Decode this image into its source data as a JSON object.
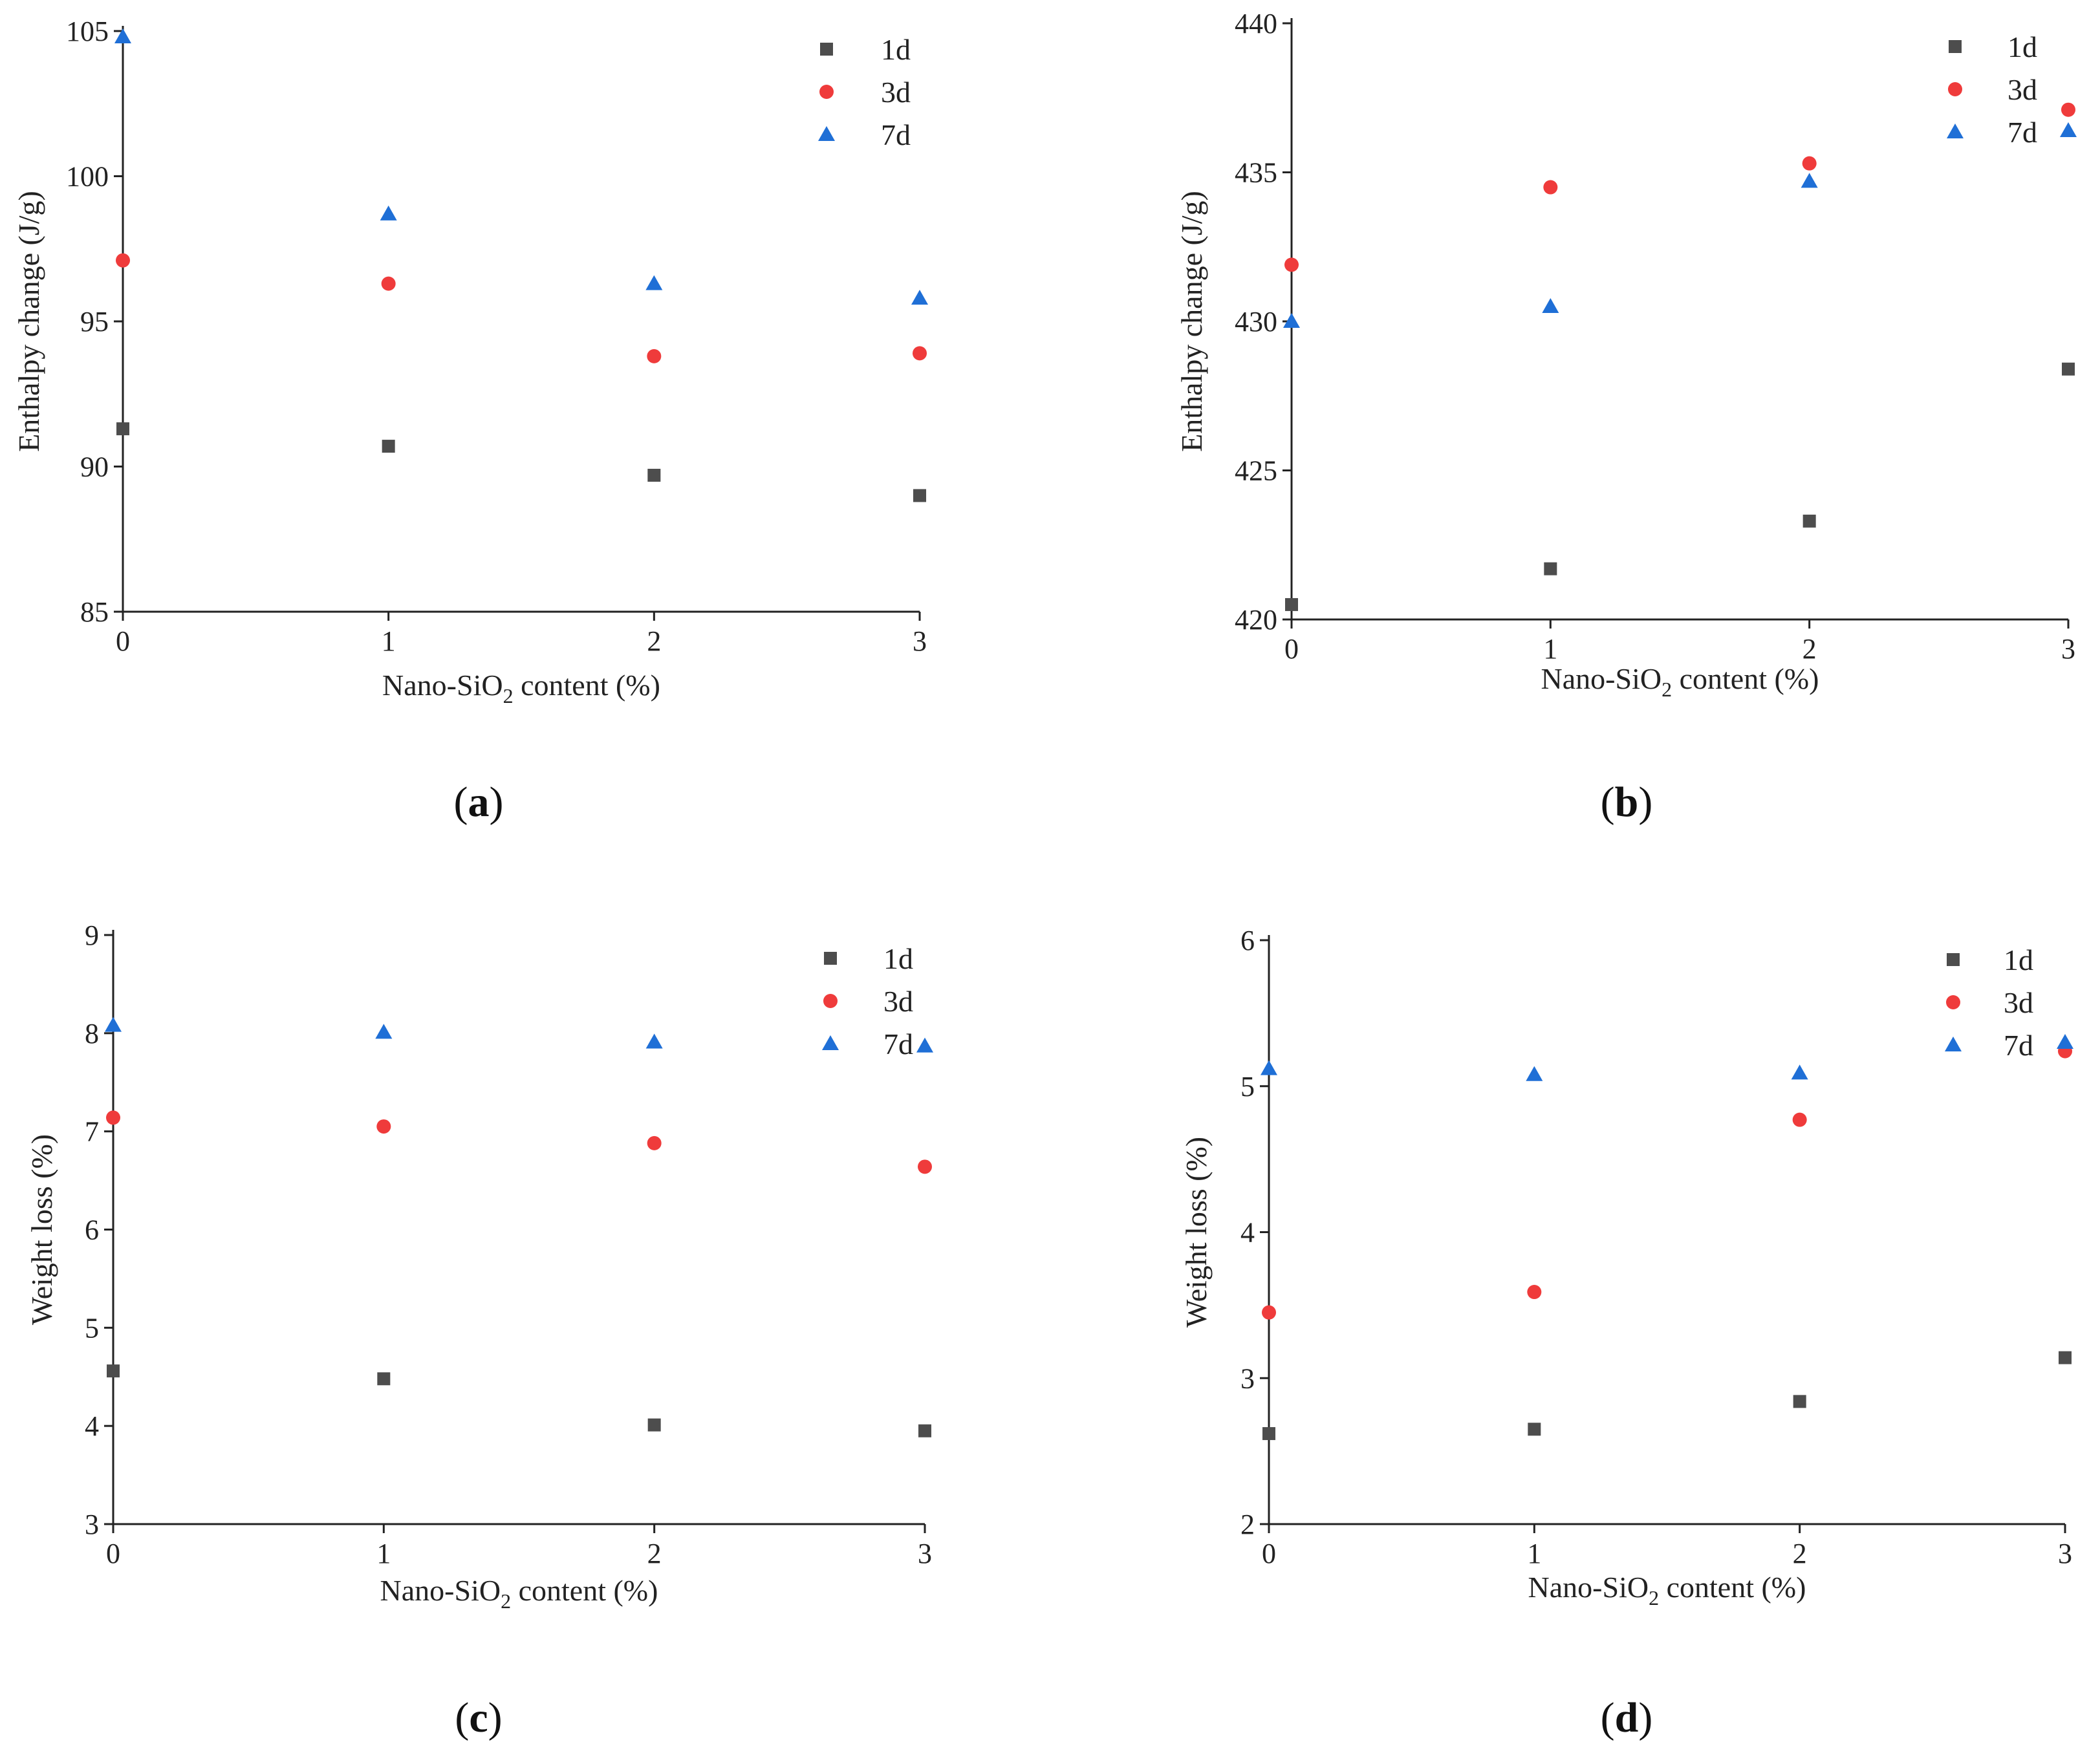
{
  "series_styles": [
    {
      "name": "1d",
      "marker": "square",
      "color": "#4d4d4d"
    },
    {
      "name": "3d",
      "marker": "circle",
      "color": "#ef3b3b"
    },
    {
      "name": "7d",
      "marker": "triangle",
      "color": "#1f6fd6"
    }
  ],
  "chart_data": [
    {
      "type": "scatter",
      "panel": "(a)",
      "caption": {
        "open": "(",
        "letter": "a",
        "close": ")"
      },
      "xlabel": {
        "main": "Nano-SiO",
        "sub": "2",
        "tail": " content (%)"
      },
      "ylabel": "Enthalpy change (J/g)",
      "x": [
        0,
        1,
        2,
        3
      ],
      "xlim": [
        0,
        3
      ],
      "ylim": [
        85,
        105
      ],
      "xticks": [
        "0",
        "1",
        "2",
        "3"
      ],
      "yticks": [
        "85",
        "90",
        "95",
        "100",
        "105"
      ],
      "legend": {
        "position": "top-right"
      },
      "series": [
        {
          "name": "1d",
          "values": [
            91.3,
            90.7,
            89.7,
            89.0
          ]
        },
        {
          "name": "3d",
          "values": [
            97.1,
            96.3,
            93.8,
            93.9
          ]
        },
        {
          "name": "7d",
          "values": [
            104.8,
            98.7,
            96.3,
            95.8
          ]
        }
      ]
    },
    {
      "type": "scatter",
      "panel": "(b)",
      "caption": {
        "open": "(",
        "letter": "b",
        "close": ")"
      },
      "xlabel": {
        "main": "Nano-SiO",
        "sub": "2",
        "tail": " content (%)"
      },
      "ylabel": "Enthalpy change (J/g)",
      "x": [
        0,
        1,
        2,
        3
      ],
      "xlim": [
        0,
        3
      ],
      "ylim": [
        420,
        440
      ],
      "xticks": [
        "0",
        "1",
        "2",
        "3"
      ],
      "yticks": [
        "420",
        "425",
        "430",
        "435",
        "440"
      ],
      "legend": {
        "position": "top-right"
      },
      "series": [
        {
          "name": "1d",
          "values": [
            420.5,
            421.7,
            423.3,
            428.4
          ]
        },
        {
          "name": "3d",
          "values": [
            431.9,
            434.5,
            435.3,
            437.1
          ]
        },
        {
          "name": "7d",
          "values": [
            430.0,
            430.5,
            434.7,
            436.4
          ]
        }
      ]
    },
    {
      "type": "scatter",
      "panel": "(c)",
      "caption": {
        "open": "(",
        "letter": "c",
        "close": ")"
      },
      "xlabel": {
        "main": "Nano-SiO",
        "sub": "2",
        "tail": " content (%)"
      },
      "ylabel": "Weight loss (%)",
      "x": [
        0,
        1,
        2,
        3
      ],
      "xlim": [
        0,
        3
      ],
      "ylim": [
        3,
        9
      ],
      "xticks": [
        "0",
        "1",
        "2",
        "3"
      ],
      "yticks": [
        "3",
        "4",
        "5",
        "6",
        "7",
        "8",
        "9"
      ],
      "legend": {
        "position": "top-right"
      },
      "series": [
        {
          "name": "1d",
          "values": [
            4.56,
            4.48,
            4.01,
            3.95
          ]
        },
        {
          "name": "3d",
          "values": [
            7.14,
            7.05,
            6.88,
            6.64
          ]
        },
        {
          "name": "7d",
          "values": [
            8.08,
            8.01,
            7.91,
            7.87
          ]
        }
      ]
    },
    {
      "type": "scatter",
      "panel": "(d)",
      "caption": {
        "open": "(",
        "letter": "d",
        "close": ")"
      },
      "xlabel": {
        "main": "Nano-SiO",
        "sub": "2",
        "tail": " content (%)"
      },
      "ylabel": "Weight loss (%)",
      "x": [
        0,
        1,
        2,
        3
      ],
      "xlim": [
        0,
        3
      ],
      "ylim": [
        2,
        6
      ],
      "xticks": [
        "0",
        "1",
        "2",
        "3"
      ],
      "yticks": [
        "2",
        "3",
        "4",
        "5",
        "6"
      ],
      "legend": {
        "position": "top-right"
      },
      "series": [
        {
          "name": "1d",
          "values": [
            2.62,
            2.65,
            2.84,
            3.14
          ]
        },
        {
          "name": "3d",
          "values": [
            3.45,
            3.59,
            4.77,
            5.24
          ]
        },
        {
          "name": "7d",
          "values": [
            5.12,
            5.08,
            5.09,
            5.3
          ]
        }
      ]
    }
  ]
}
